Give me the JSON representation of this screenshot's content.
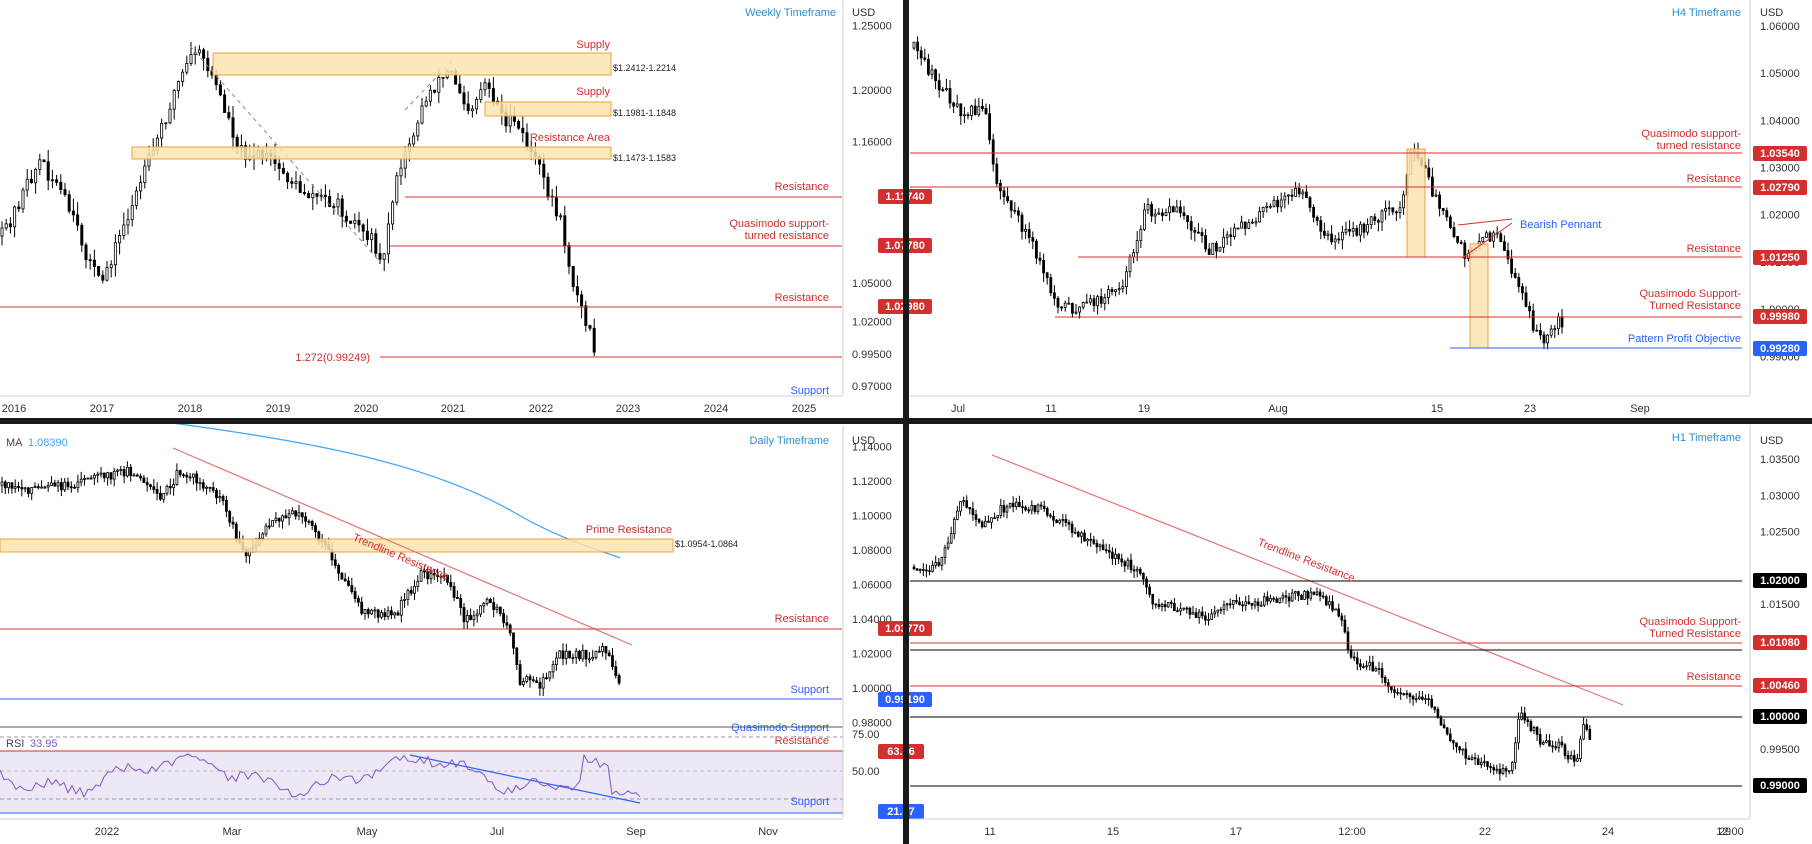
{
  "panels": {
    "weekly": {
      "timeframe_label": "Weekly Timeframe",
      "currency": "USD",
      "price_axis": {
        "min": 0.963,
        "max": 1.27,
        "ticks": [
          "1.25000",
          "1.20000",
          "1.16000",
          "1.05000",
          "1.02000",
          "0.99500",
          "0.97000"
        ],
        "tick_values": [
          1.25,
          1.2,
          1.16,
          1.05,
          1.02,
          0.995,
          0.97
        ]
      },
      "time_labels": [
        "2016",
        "2017",
        "2018",
        "2019",
        "2020",
        "2021",
        "2022",
        "2023",
        "2024",
        "2025"
      ],
      "annotations": {
        "supply_1": "Supply",
        "supply_1_range": "$1.2412-1.2214",
        "supply_2": "Supply",
        "supply_2_range": "$1.1981-1.1848",
        "resistance_area": "Resistance Area",
        "resistance_area_range": "$1.1473-1.1583",
        "resistance_1": "Resistance",
        "quasimodo_1": "Quasimodo support-",
        "quasimodo_2": "turned resistance",
        "resistance_2": "Resistance",
        "fib": "1.272(0.99249)",
        "support": "Support"
      },
      "price_tags": [
        "1.11740",
        "1.07780",
        "1.02980"
      ]
    },
    "h4": {
      "timeframe_label": "H4 Timeframe",
      "currency": "USD",
      "price_axis": {
        "min": 0.9818,
        "max": 1.0655,
        "ticks": [
          "1.06000",
          "1.05000",
          "1.04000",
          "1.03000",
          "1.02000",
          "1.01000",
          "1.00000",
          "0.99000"
        ],
        "tick_values": [
          1.06,
          1.05,
          1.04,
          1.03,
          1.02,
          1.01,
          1.0,
          0.99
        ]
      },
      "time_labels": [
        "Jul",
        "11",
        "19",
        "Aug",
        "15",
        "23",
        "Sep"
      ],
      "annotations": {
        "quasimodo_1": "Quasimodo support-",
        "quasimodo_2": "turned resistance",
        "resistance_1": "Resistance",
        "bearish_pennant": "Bearish Pennant",
        "resistance_2": "Resistance",
        "quasimodo_3": "Quasimodo Support-",
        "quasimodo_4": "Turned Resistance",
        "pattern_profit": "Pattern Profit Objective"
      },
      "price_tags": [
        "1.03540",
        "1.02790",
        "1.01250",
        "0.99980",
        "0.99280"
      ]
    },
    "daily": {
      "timeframe_label": "Daily Timeframe",
      "currency": "USD",
      "ma_label": "MA",
      "ma_value": "1.08390",
      "price_axis": {
        "min": 0.9774,
        "max": 1.1525,
        "ticks": [
          "1.14000",
          "1.12000",
          "1.10000",
          "1.08000",
          "1.06000",
          "1.04000",
          "1.02000",
          "1.00000",
          "0.98000"
        ],
        "tick_values": [
          1.14,
          1.12,
          1.1,
          1.08,
          1.06,
          1.04,
          1.02,
          1.0,
          0.98
        ]
      },
      "time_labels": [
        "2022",
        "Mar",
        "May",
        "Jul",
        "Sep",
        "Nov"
      ],
      "annotations": {
        "trendline": "Trendline Resistance",
        "prime_resistance": "Prime Resistance",
        "prime_range": "$1.0954-1.0864",
        "resistance": "Resistance",
        "support": "Support",
        "quasimodo_cut": "Quasimodo Support"
      },
      "price_tags": [
        "1.03770",
        "0.99190"
      ],
      "rsi": {
        "label": "RSI",
        "value": "33.95",
        "ticks": [
          "75.00",
          "50.00"
        ],
        "resistance": "Resistance",
        "support": "Support",
        "tags": [
          "63.66",
          "21.87"
        ]
      }
    },
    "h1": {
      "timeframe_label": "H1 Timeframe",
      "currency": "USD",
      "price_axis": {
        "min": 0.9855,
        "max": 1.0397,
        "ticks": [
          "1.03500",
          "1.03000",
          "1.02500",
          "1.01500",
          "1.01000",
          "0.99500"
        ],
        "tick_values": [
          1.035,
          1.03,
          1.025,
          1.015,
          1.01,
          0.995
        ]
      },
      "time_labels": [
        "11",
        "15",
        "17",
        "12:00",
        "22",
        "24",
        "12:00",
        "29"
      ],
      "annotations": {
        "trendline": "Trendline Resistance",
        "quasimodo_1": "Quasimodo Support-",
        "quasimodo_2": "Turned Resistance",
        "resistance": "Resistance"
      },
      "price_tags": [
        "1.02000",
        "1.01080",
        "1.00460",
        "1.00000",
        "0.99000"
      ]
    }
  },
  "colors": {
    "resistance_red": "#d32f2f",
    "support_blue": "#2962ff",
    "zone_fill": "#fde3b0",
    "zone_border": "#e8a33d",
    "label_blue": "#2b8fd6",
    "candle": "#000000",
    "divider": "#1a1a1a",
    "ma_blue": "#42a5f5",
    "rsi_purple": "#7e57c2",
    "rsi_fill": "#ede7f6"
  },
  "chart_data": [
    {
      "type": "candlestick",
      "title": "Weekly Timeframe",
      "ylim": [
        0.963,
        1.27
      ],
      "x": [
        "2016",
        "2017",
        "2018",
        "2019",
        "2020",
        "2021",
        "2022",
        "2023",
        "2024",
        "2025"
      ],
      "close_path": [
        [
          2016.0,
          1.07
        ],
        [
          2016.5,
          1.12
        ],
        [
          2016.9,
          1.05
        ],
        [
          2017.4,
          1.09
        ],
        [
          2017.9,
          1.19
        ],
        [
          2018.1,
          1.245
        ],
        [
          2018.4,
          1.17
        ],
        [
          2018.9,
          1.14
        ],
        [
          2019.4,
          1.13
        ],
        [
          2019.8,
          1.1
        ],
        [
          2020.2,
          1.08
        ],
        [
          2020.5,
          1.14
        ],
        [
          2020.9,
          1.21
        ],
        [
          2021.0,
          1.23
        ],
        [
          2021.3,
          1.19
        ],
        [
          2021.6,
          1.22
        ],
        [
          2021.9,
          1.13
        ],
        [
          2022.1,
          1.13
        ],
        [
          2022.4,
          1.05
        ],
        [
          2022.6,
          0.995
        ]
      ],
      "levels": [
        {
          "label": "Supply",
          "range": [
            1.2214,
            1.2412
          ]
        },
        {
          "label": "Supply",
          "range": [
            1.1848,
            1.1981
          ]
        },
        {
          "label": "Resistance Area",
          "range": [
            1.1473,
            1.1583
          ]
        },
        {
          "label": "Resistance",
          "value": 1.1174
        },
        {
          "label": "Quasimodo support-turned resistance",
          "value": 1.0778
        },
        {
          "label": "Resistance",
          "value": 1.0298
        },
        {
          "label": "1.272(0.99249)",
          "value": 0.99249
        }
      ]
    },
    {
      "type": "candlestick",
      "title": "H4 Timeframe",
      "ylim": [
        0.9818,
        1.0655
      ],
      "x": [
        "Jul",
        "11",
        "19",
        "Aug",
        "15",
        "23",
        "Sep"
      ],
      "levels": [
        {
          "label": "Quasimodo support-turned resistance",
          "value": 1.0354
        },
        {
          "label": "Resistance",
          "value": 1.0279
        },
        {
          "label": "Resistance",
          "value": 1.0125
        },
        {
          "label": "Quasimodo Support-Turned Resistance",
          "value": 0.9998
        },
        {
          "label": "Pattern Profit Objective",
          "value": 0.9928
        }
      ]
    },
    {
      "type": "candlestick",
      "title": "Daily Timeframe",
      "ylim": [
        0.9774,
        1.1525
      ],
      "x": [
        "2022",
        "Mar",
        "May",
        "Jul",
        "Sep",
        "Nov"
      ],
      "series": [
        {
          "name": "MA",
          "last": 1.0839
        }
      ],
      "levels": [
        {
          "label": "Prime Resistance",
          "range": [
            1.0864,
            1.0954
          ]
        },
        {
          "label": "Resistance",
          "value": 1.0377
        },
        {
          "label": "Support",
          "value": 0.9919
        }
      ],
      "rsi": {
        "value": 33.95,
        "resistance": 63.66,
        "support": 21.87
      }
    },
    {
      "type": "candlestick",
      "title": "H1 Timeframe",
      "ylim": [
        0.9855,
        1.0397
      ],
      "x": [
        "11",
        "15",
        "17",
        "12:00",
        "22",
        "24",
        "12:00",
        "29"
      ],
      "levels": [
        {
          "value": 1.02
        },
        {
          "label": "Quasimodo Support-Turned Resistance",
          "value": 1.0108
        },
        {
          "label": "Resistance",
          "value": 1.0046
        },
        {
          "value": 1.0
        },
        {
          "value": 0.99
        }
      ]
    }
  ]
}
